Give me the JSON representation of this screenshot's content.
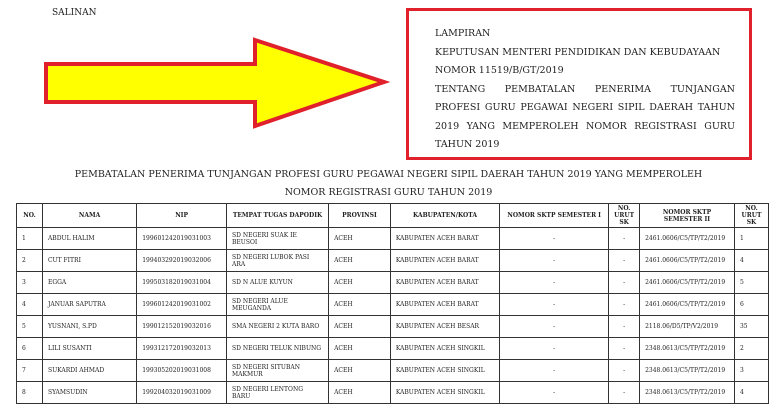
{
  "salinan": "SALINAN",
  "colors": {
    "arrow_fill": "#ffff00",
    "arrow_stroke": "#e0202a",
    "box_border": "#e0202a"
  },
  "lampiran": [
    "LAMPIRAN",
    "KEPUTUSAN MENTERI PENDIDIKAN DAN KEBUDAYAAN",
    "NOMOR 11519/B/GT/2019",
    "TENTANG PEMBATALAN PENERIMA TUNJANGAN",
    "PROFESI GURU PEGAWAI NEGERI SIPIL DAERAH TAHUN",
    "2019 YANG MEMPEROLEH NOMOR REGISTRASI GURU",
    "TAHUN 2019"
  ],
  "title": [
    "PEMBATALAN PENERIMA TUNJANGAN PROFESI GURU PEGAWAI NEGERI SIPIL DAERAH TAHUN 2019 YANG MEMPEROLEH",
    "NOMOR REGISTRASI GURU TAHUN 2019"
  ],
  "headers": [
    "NO.",
    "NAMA",
    "NIP",
    "TEMPAT TUGAS DAPODIK",
    "PROVINSI",
    "KABUPATEN/KOTA",
    "NOMOR SKTP SEMESTER I",
    "NO. URUT SK",
    "NOMOR SKTP SEMESTER II",
    "NO. URUT SK"
  ],
  "rows": [
    [
      "1",
      "ABDUL HALIM",
      "199601242019031003",
      "SD NEGERI SUAK IE BEUSOI",
      "ACEH",
      "KABUPATEN ACEH BARAT",
      "-",
      "-",
      "2461.0606/C5/TP/T2/2019",
      "1"
    ],
    [
      "2",
      "CUT FITRI",
      "199403292019032006",
      "SD NEGERI LUBOK PASI ARA",
      "ACEH",
      "KABUPATEN ACEH BARAT",
      "-",
      "-",
      "2461.0606/C5/TP/T2/2019",
      "4"
    ],
    [
      "3",
      "EGGA",
      "199503182019031004",
      "SD N ALUE KUYUN",
      "ACEH",
      "KABUPATEN ACEH BARAT",
      "-",
      "-",
      "2461.0606/C5/TP/T2/2019",
      "5"
    ],
    [
      "4",
      "JANUAR SAPUTRA",
      "199601242019031002",
      "SD NEGERI ALUE MEUGANDA",
      "ACEH",
      "KABUPATEN ACEH BARAT",
      "-",
      "-",
      "2461.0606/C5/TP/T2/2019",
      "6"
    ],
    [
      "5",
      "YUSNANI, S.PD",
      "199012152019032016",
      "SMA NEGERI 2 KUTA BARO",
      "ACEH",
      "KABUPATEN ACEH BESAR",
      "-",
      "-",
      "2118.06/D5/TP/V2/2019",
      "35"
    ],
    [
      "6",
      "LILI SUSANTI",
      "199312172019032013",
      "SD NEGERI TELUK NIBUNG",
      "ACEH",
      "KABUPATEN ACEH SINGKIL",
      "-",
      "-",
      "2348.0613/C5/TP/T2/2019",
      "2"
    ],
    [
      "7",
      "SUKARDI AHMAD",
      "199305202019031008",
      "SD NEGERI SITUBAN MAKMUR",
      "ACEH",
      "KABUPATEN ACEH SINGKIL",
      "-",
      "-",
      "2348.0613/C5/TP/T2/2019",
      "3"
    ],
    [
      "8",
      "SYAMSUDIN",
      "199204032019031009",
      "SD NEGERI LENTONG BARU",
      "ACEH",
      "KABUPATEN ACEH SINGKIL",
      "-",
      "-",
      "2348.0613/C5/TP/T2/2019",
      "4"
    ]
  ]
}
